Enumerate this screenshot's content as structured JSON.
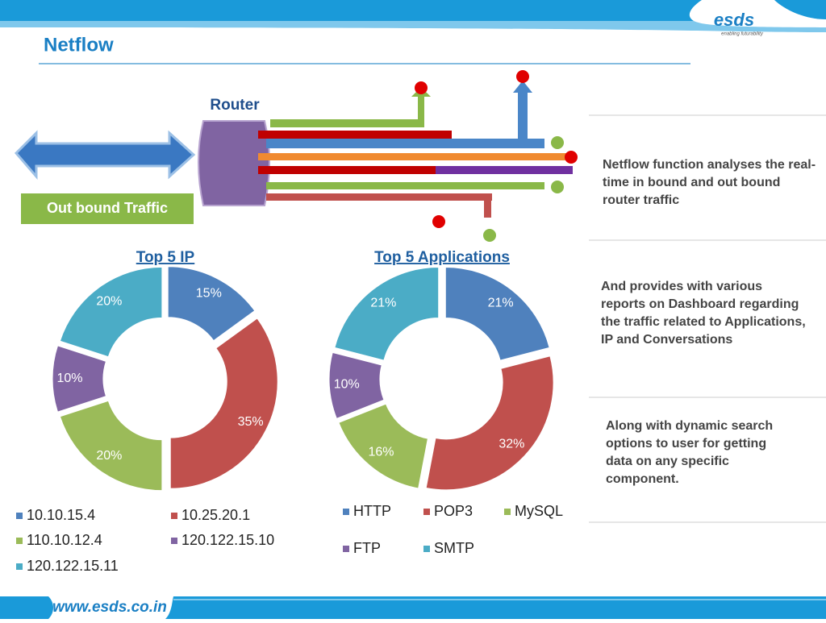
{
  "header": {
    "title": "Netflow",
    "logo": "esds",
    "tagline": "enabling futurability"
  },
  "diagram": {
    "router_label": "Router",
    "traffic_label": "Out bound Traffic"
  },
  "notes": [
    "Netflow function analyses the real-time in bound and out bound router traffic",
    "And provides with various reports on Dashboard regarding the traffic related to Applications, IP and Conversations",
    "Along with dynamic search options to user for getting data on any specific component."
  ],
  "footer": {
    "url": "www.esds.co.in"
  },
  "chart_data": [
    {
      "type": "pie",
      "donut": true,
      "title": "Top 5 IP",
      "categories": [
        "10.10.15.4",
        "10.25.20.1",
        "110.10.12.4",
        "120.122.15.10",
        "120.122.15.11"
      ],
      "values": [
        15,
        35,
        20,
        10,
        20
      ],
      "value_labels": [
        "15%",
        "35%",
        "20%",
        "10%",
        "20%"
      ],
      "colors": [
        "#4f81bd",
        "#c0504d",
        "#9bbb59",
        "#8064a2",
        "#4bacc6"
      ]
    },
    {
      "type": "pie",
      "donut": true,
      "title": "Top 5 Applications",
      "categories": [
        "HTTP",
        "POP3",
        "MySQL",
        "FTP",
        "SMTP"
      ],
      "values": [
        21,
        32,
        16,
        10,
        21
      ],
      "value_labels": [
        "21%",
        "32%",
        "16%",
        "10%",
        "21%"
      ],
      "colors": [
        "#4f81bd",
        "#c0504d",
        "#9bbb59",
        "#8064a2",
        "#4bacc6"
      ]
    }
  ]
}
